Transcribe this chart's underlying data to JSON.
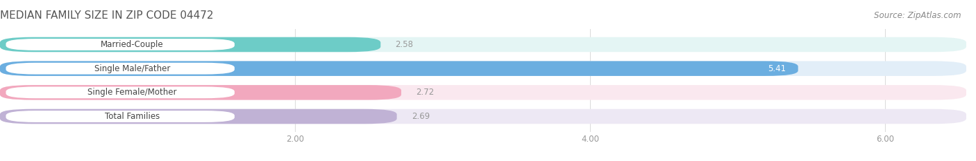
{
  "title": "MEDIAN FAMILY SIZE IN ZIP CODE 04472",
  "source": "Source: ZipAtlas.com",
  "categories": [
    "Married-Couple",
    "Single Male/Father",
    "Single Female/Mother",
    "Total Families"
  ],
  "values": [
    2.58,
    5.41,
    2.72,
    2.69
  ],
  "bar_colors": [
    "#6DCCC7",
    "#6BAEE0",
    "#F2A8BE",
    "#C0B2D5"
  ],
  "bar_bg_colors": [
    "#E4F5F4",
    "#E2EEF8",
    "#FAE8EF",
    "#EDE8F4"
  ],
  "label_bg_color": "#ffffff",
  "xlim": [
    0,
    6.55
  ],
  "xticks": [
    2.0,
    4.0,
    6.0
  ],
  "xtick_labels": [
    "2.00",
    "4.00",
    "6.00"
  ],
  "value_label_color_inside": "#ffffff",
  "value_label_color_outside": "#999999",
  "background_color": "#ffffff",
  "title_fontsize": 11,
  "label_fontsize": 8.5,
  "tick_fontsize": 8.5,
  "source_fontsize": 8.5,
  "bar_height": 0.62,
  "label_padding": 0.1,
  "bar_gap": 0.18
}
